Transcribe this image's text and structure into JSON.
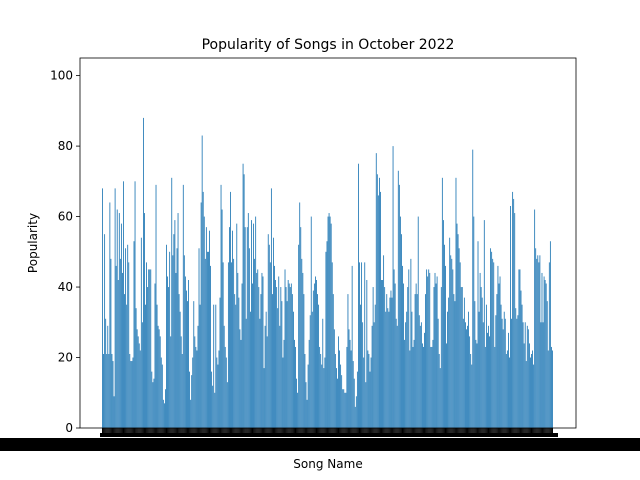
{
  "chart_data": {
    "type": "bar",
    "title": "Popularity of Songs in October 2022",
    "xlabel": "Song Name",
    "ylabel": "Popularity",
    "ylim": [
      0,
      105
    ],
    "yticks": [
      0,
      20,
      40,
      60,
      80,
      100
    ],
    "grid": false,
    "bar_color": "#1f77b4",
    "values": [
      68,
      21,
      55,
      31,
      21,
      29,
      21,
      64,
      48,
      21,
      19,
      9,
      68,
      46,
      62,
      42,
      61,
      48,
      58,
      44,
      70,
      38,
      51,
      35,
      52,
      47,
      21,
      19,
      19,
      20,
      53,
      70,
      34,
      28,
      26,
      24,
      22,
      54,
      30,
      88,
      61,
      35,
      47,
      40,
      45,
      45,
      45,
      16,
      13,
      14,
      41,
      69,
      35,
      29,
      28,
      26,
      20,
      18,
      8,
      7,
      11,
      52,
      43,
      40,
      50,
      26,
      71,
      49,
      55,
      59,
      44,
      51,
      61,
      38,
      33,
      26,
      21,
      69,
      49,
      43,
      39,
      36,
      42,
      16,
      8,
      15,
      20,
      36,
      26,
      23,
      22,
      29,
      51,
      35,
      64,
      83,
      67,
      60,
      48,
      57,
      50,
      50,
      56,
      46,
      16,
      12,
      35,
      10,
      35,
      20,
      18,
      22,
      37,
      69,
      62,
      47,
      29,
      23,
      20,
      13,
      47,
      57,
      67,
      47,
      56,
      48,
      38,
      35,
      58,
      44,
      37,
      28,
      25,
      41,
      75,
      72,
      57,
      31,
      57,
      61,
      51,
      33,
      59,
      41,
      58,
      48,
      60,
      44,
      45,
      40,
      31,
      38,
      44,
      43,
      17,
      29,
      33,
      26,
      55,
      52,
      47,
      68,
      38,
      54,
      46,
      42,
      40,
      34,
      43,
      29,
      40,
      36,
      20,
      25,
      45,
      40,
      36,
      42,
      41,
      40,
      41,
      38,
      33,
      25,
      23,
      14,
      10,
      52,
      64,
      57,
      48,
      44,
      38,
      21,
      13,
      8,
      18,
      25,
      32,
      60,
      33,
      39,
      41,
      43,
      42,
      38,
      35,
      23,
      21,
      18,
      31,
      17,
      20,
      50,
      53,
      60,
      61,
      60,
      58,
      47,
      38,
      28,
      21,
      17,
      14,
      26,
      22,
      18,
      15,
      11,
      11,
      10,
      10,
      23,
      38,
      28,
      25,
      22,
      46,
      19,
      14,
      6,
      9,
      16,
      75,
      47,
      35,
      47,
      30,
      20,
      47,
      13,
      42,
      22,
      21,
      16,
      20,
      29,
      40,
      30,
      35,
      78,
      72,
      66,
      71,
      67,
      42,
      42,
      49,
      40,
      33,
      38,
      34,
      33,
      37,
      39,
      37,
      80,
      45,
      41,
      31,
      29,
      73,
      69,
      60,
      55,
      46,
      41,
      25,
      30,
      33,
      40,
      45,
      22,
      48,
      33,
      23,
      25,
      38,
      41,
      38,
      60,
      32,
      29,
      30,
      24,
      23,
      27,
      38,
      45,
      43,
      45,
      44,
      23,
      23,
      25,
      40,
      44,
      41,
      43,
      31,
      21,
      17,
      40,
      71,
      59,
      52,
      46,
      24,
      33,
      37,
      54,
      49,
      48,
      45,
      38,
      36,
      71,
      58,
      55,
      51,
      47,
      40,
      40,
      31,
      37,
      30,
      28,
      29,
      33,
      26,
      21,
      18,
      79,
      60,
      36,
      25,
      24,
      53,
      33,
      44,
      40,
      37,
      30,
      59,
      23,
      35,
      27,
      29,
      26,
      51,
      50,
      48,
      47,
      23,
      32,
      38,
      46,
      41,
      43,
      35,
      31,
      28,
      33,
      31,
      21,
      22,
      27,
      20,
      63,
      31,
      67,
      65,
      61,
      34,
      31,
      32,
      45,
      45,
      39,
      35,
      30,
      24,
      30,
      19,
      29,
      28,
      24,
      20,
      21,
      22,
      18,
      62,
      51,
      48,
      49,
      47,
      49,
      30,
      44,
      30,
      43,
      42,
      41,
      36,
      22,
      47,
      53,
      23,
      22
    ]
  }
}
